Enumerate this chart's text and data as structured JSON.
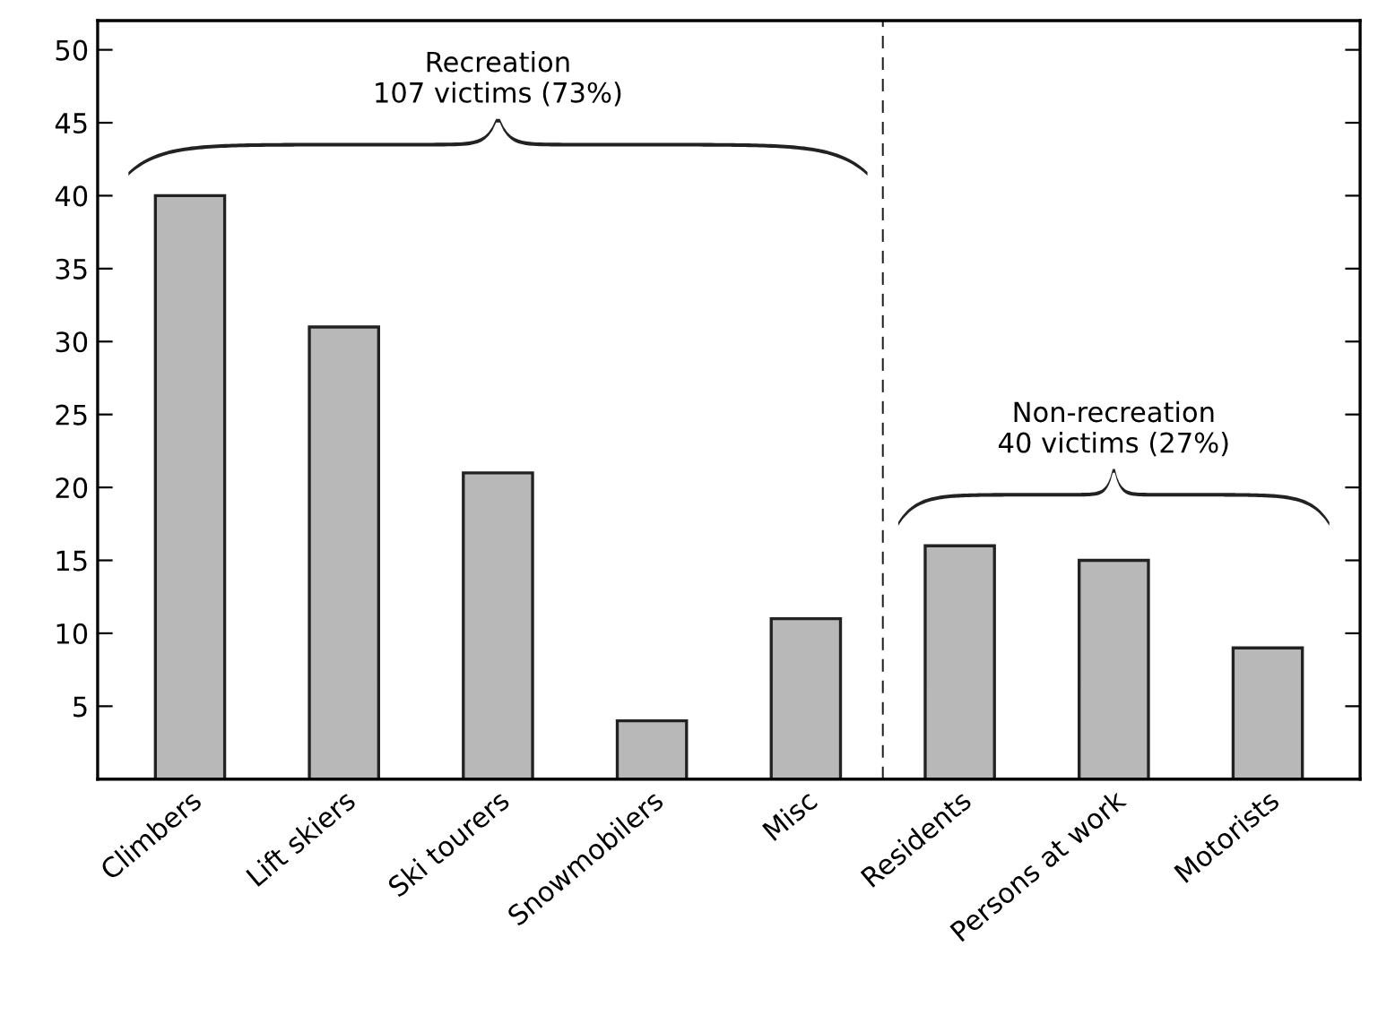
{
  "chart_data": {
    "type": "bar",
    "categories": [
      "Climbers",
      "Lift skiers",
      "Ski tourers",
      "Snowmobilers",
      "Misc",
      "Residents",
      "Persons at work",
      "Motorists"
    ],
    "values": [
      40,
      31,
      21,
      4,
      11,
      16,
      15,
      9
    ],
    "color": "#b8b8b8",
    "ylim": [
      0,
      52
    ],
    "yticks": [
      5,
      10,
      15,
      20,
      25,
      30,
      35,
      40,
      45,
      50
    ],
    "annotations": [
      "Recreation\n107 victims (73%)",
      "Non-recreation\n40 victims (27%)"
    ],
    "grid": false,
    "legend": false
  }
}
